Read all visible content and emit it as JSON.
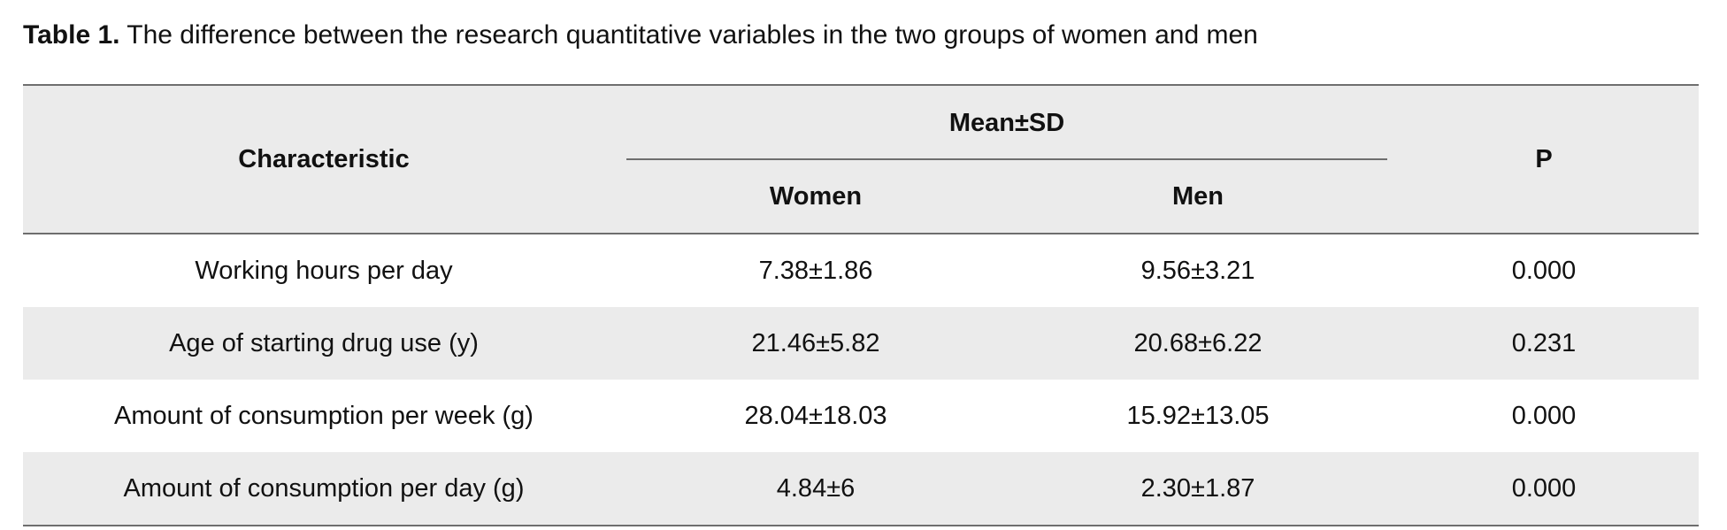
{
  "caption": {
    "label": "Table 1.",
    "text": "The difference between the research quantitative variables in the two groups of women and men"
  },
  "table": {
    "header": {
      "characteristic": "Characteristic",
      "group": "Mean±SD",
      "women": "Women",
      "men": "Men",
      "p": "P"
    },
    "rows": [
      {
        "characteristic": "Working hours per day",
        "women": "7.38±1.86",
        "men": "9.56±3.21",
        "p": "0.000"
      },
      {
        "characteristic": "Age of starting drug use (y)",
        "women": "21.46±5.82",
        "men": "20.68±6.22",
        "p": "0.231"
      },
      {
        "characteristic": "Amount of consumption per week (g)",
        "women": "28.04±18.03",
        "men": "15.92±13.05",
        "p": "0.000"
      },
      {
        "characteristic": "Amount of consumption per day (g)",
        "women": "4.84±6",
        "men": "2.30±1.87",
        "p": "0.000"
      }
    ]
  },
  "colors": {
    "shade": "#ebebeb",
    "rule": "#6e6e6e"
  }
}
